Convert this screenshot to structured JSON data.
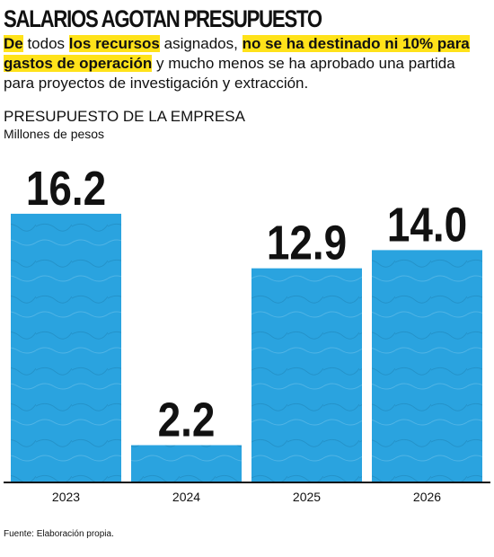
{
  "chart_data": {
    "type": "bar",
    "title": "SALARIOS AGOTAN PRESUPUESTO",
    "subtitle_segments": [
      "De",
      " todos ",
      "los recursos",
      " asignados, ",
      "no se ha destinado ni 10% para gastos de operación",
      " y mucho menos se ha aprobado una partida para proyectos de investigación y extracción."
    ],
    "chart_title": "PRESUPUESTO DE LA EMPRESA",
    "unit_label": "Millones de pesos",
    "categories": [
      "2023",
      "2024",
      "2025",
      "2026"
    ],
    "values": [
      16.2,
      2.2,
      12.9,
      14
    ],
    "value_labels": [
      "16.2",
      "2.2",
      "12.9",
      "14.0"
    ],
    "color": "#2aa3df",
    "source": "Fuente: Elaboración propia."
  }
}
